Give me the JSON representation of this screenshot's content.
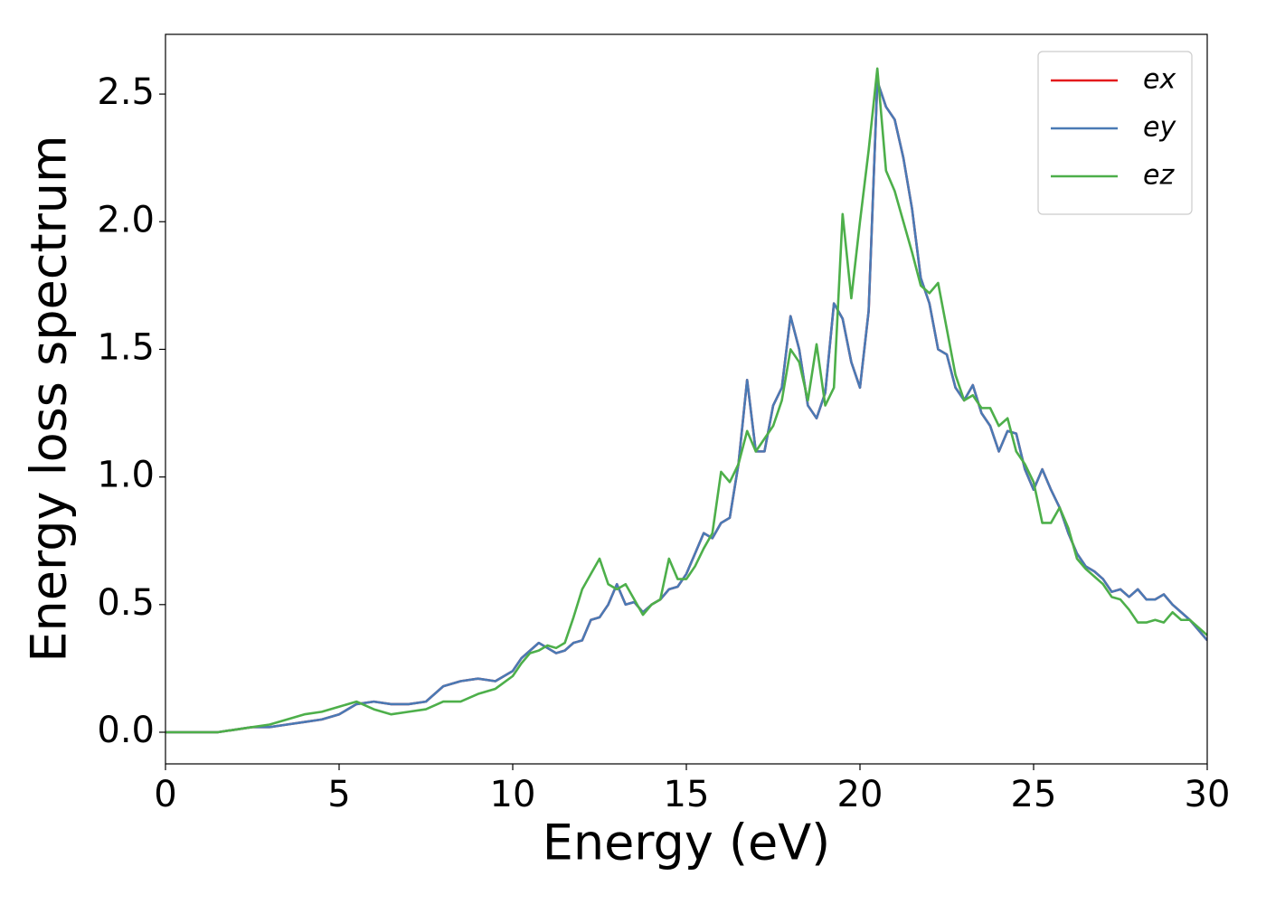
{
  "chart_data": {
    "type": "line",
    "xlabel": "Energy (eV)",
    "ylabel": "Energy loss spectrum",
    "x": [
      0,
      0.5,
      1,
      1.5,
      2,
      2.5,
      3,
      3.5,
      4,
      4.5,
      5,
      5.5,
      6,
      6.5,
      7,
      7.5,
      8,
      8.5,
      9,
      9.5,
      10,
      10.25,
      10.5,
      10.75,
      11,
      11.25,
      11.5,
      11.75,
      12,
      12.25,
      12.5,
      12.75,
      13,
      13.25,
      13.5,
      13.75,
      14,
      14.25,
      14.5,
      14.75,
      15,
      15.25,
      15.5,
      15.75,
      16,
      16.25,
      16.5,
      16.75,
      17,
      17.25,
      17.5,
      17.75,
      18,
      18.25,
      18.5,
      18.75,
      19,
      19.25,
      19.5,
      19.75,
      20,
      20.25,
      20.5,
      20.75,
      21,
      21.25,
      21.5,
      21.75,
      22,
      22.25,
      22.5,
      22.75,
      23,
      23.25,
      23.5,
      23.75,
      24,
      24.25,
      24.5,
      24.75,
      25,
      25.25,
      25.5,
      25.75,
      26,
      26.25,
      26.5,
      26.75,
      27,
      27.25,
      27.5,
      27.75,
      28,
      28.25,
      28.5,
      28.75,
      29,
      29.25,
      29.5,
      29.75,
      30
    ],
    "series": [
      {
        "name": "ex",
        "color": "#e41a1c",
        "values": [
          0,
          0,
          0,
          0,
          0.01,
          0.02,
          0.02,
          0.03,
          0.04,
          0.05,
          0.07,
          0.11,
          0.12,
          0.11,
          0.11,
          0.12,
          0.18,
          0.2,
          0.21,
          0.2,
          0.24,
          0.29,
          0.32,
          0.35,
          0.33,
          0.31,
          0.32,
          0.35,
          0.36,
          0.44,
          0.45,
          0.5,
          0.58,
          0.5,
          0.51,
          0.47,
          0.5,
          0.52,
          0.56,
          0.57,
          0.62,
          0.7,
          0.78,
          0.76,
          0.82,
          0.84,
          1.05,
          1.38,
          1.1,
          1.1,
          1.28,
          1.35,
          1.63,
          1.5,
          1.28,
          1.23,
          1.33,
          1.68,
          1.62,
          1.45,
          1.35,
          1.65,
          2.55,
          2.45,
          2.4,
          2.25,
          2.05,
          1.78,
          1.68,
          1.5,
          1.48,
          1.35,
          1.3,
          1.36,
          1.25,
          1.2,
          1.1,
          1.18,
          1.17,
          1.03,
          0.95,
          1.03,
          0.95,
          0.88,
          0.78,
          0.7,
          0.65,
          0.63,
          0.6,
          0.55,
          0.56,
          0.53,
          0.56,
          0.52,
          0.52,
          0.54,
          0.5,
          0.47,
          0.44,
          0.4,
          0.36
        ]
      },
      {
        "name": "ey",
        "color": "#4a7ab5",
        "values": [
          0,
          0,
          0,
          0,
          0.01,
          0.02,
          0.02,
          0.03,
          0.04,
          0.05,
          0.07,
          0.11,
          0.12,
          0.11,
          0.11,
          0.12,
          0.18,
          0.2,
          0.21,
          0.2,
          0.24,
          0.29,
          0.32,
          0.35,
          0.33,
          0.31,
          0.32,
          0.35,
          0.36,
          0.44,
          0.45,
          0.5,
          0.58,
          0.5,
          0.51,
          0.47,
          0.5,
          0.52,
          0.56,
          0.57,
          0.62,
          0.7,
          0.78,
          0.76,
          0.82,
          0.84,
          1.05,
          1.38,
          1.1,
          1.1,
          1.28,
          1.35,
          1.63,
          1.5,
          1.28,
          1.23,
          1.33,
          1.68,
          1.62,
          1.45,
          1.35,
          1.65,
          2.55,
          2.45,
          2.4,
          2.25,
          2.05,
          1.78,
          1.68,
          1.5,
          1.48,
          1.35,
          1.3,
          1.36,
          1.25,
          1.2,
          1.1,
          1.18,
          1.17,
          1.03,
          0.95,
          1.03,
          0.95,
          0.88,
          0.78,
          0.7,
          0.65,
          0.63,
          0.6,
          0.55,
          0.56,
          0.53,
          0.56,
          0.52,
          0.52,
          0.54,
          0.5,
          0.47,
          0.44,
          0.4,
          0.36
        ]
      },
      {
        "name": "ez",
        "color": "#4daf4a",
        "values": [
          0,
          0,
          0,
          0,
          0.01,
          0.02,
          0.03,
          0.05,
          0.07,
          0.08,
          0.1,
          0.12,
          0.09,
          0.07,
          0.08,
          0.09,
          0.12,
          0.12,
          0.15,
          0.17,
          0.22,
          0.27,
          0.31,
          0.32,
          0.34,
          0.33,
          0.35,
          0.45,
          0.56,
          0.62,
          0.68,
          0.58,
          0.56,
          0.58,
          0.52,
          0.46,
          0.5,
          0.52,
          0.68,
          0.6,
          0.6,
          0.65,
          0.72,
          0.78,
          1.02,
          0.98,
          1.05,
          1.18,
          1.1,
          1.15,
          1.2,
          1.3,
          1.5,
          1.45,
          1.3,
          1.52,
          1.28,
          1.35,
          2.03,
          1.7,
          2.0,
          2.28,
          2.6,
          2.2,
          2.12,
          2.0,
          1.88,
          1.75,
          1.72,
          1.76,
          1.58,
          1.4,
          1.3,
          1.32,
          1.27,
          1.27,
          1.2,
          1.23,
          1.1,
          1.05,
          0.98,
          0.82,
          0.82,
          0.88,
          0.8,
          0.68,
          0.64,
          0.61,
          0.58,
          0.53,
          0.52,
          0.48,
          0.43,
          0.43,
          0.44,
          0.43,
          0.47,
          0.44,
          0.44,
          0.41,
          0.38
        ]
      }
    ],
    "xlim": [
      0,
      30
    ],
    "xticks": [
      0,
      5,
      10,
      15,
      20,
      25,
      30
    ],
    "ylim": [
      -0.124,
      2.734
    ],
    "yticks": [
      {
        "value": 0,
        "label": "0.0"
      },
      0.5,
      {
        "value": 1,
        "label": "1.0"
      },
      1.5,
      {
        "value": 2,
        "label": "2.0"
      },
      2.5
    ],
    "legend": "upper right"
  }
}
